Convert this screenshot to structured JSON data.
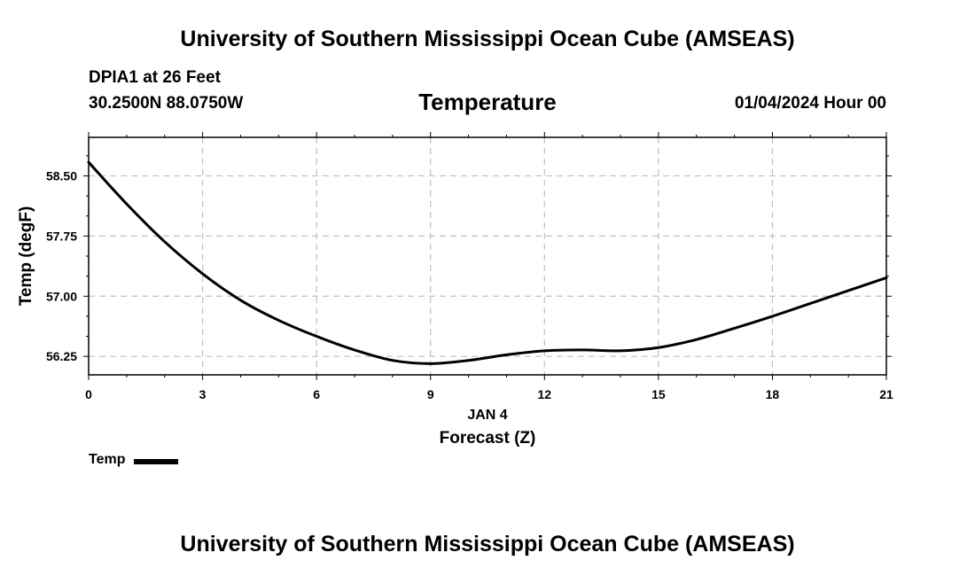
{
  "header": {
    "title": "University of Southern Mississippi Ocean Cube (AMSEAS)",
    "station": "DPIA1 at 26 Feet",
    "coordinates": "30.2500N  88.0750W",
    "variable": "Temperature",
    "datetime": "01/04/2024 Hour 00"
  },
  "footer": {
    "title": "University of Southern Mississippi Ocean Cube (AMSEAS)"
  },
  "legend": {
    "label": "Temp"
  },
  "chart_data": {
    "type": "line",
    "title": "Temperature",
    "xlabel": "Forecast (Z)",
    "xlabel_date": "JAN 4",
    "ylabel": "Temp (degF)",
    "xlim": [
      0,
      21
    ],
    "ylim": [
      56.02,
      58.98
    ],
    "xticks": [
      0,
      3,
      6,
      9,
      12,
      15,
      18,
      21
    ],
    "xtick_labels": [
      "0",
      "3",
      "6",
      "9",
      "12",
      "15",
      "18",
      "21"
    ],
    "yticks": [
      56.25,
      57.0,
      57.75,
      58.5
    ],
    "ytick_labels": [
      "56.25",
      "57.00",
      "57.75",
      "58.50"
    ],
    "grid": true,
    "legend_position": "bottom-left",
    "colors": {
      "line": "#000000",
      "grid": "#c0c0c0",
      "frame": "#000000"
    },
    "series": [
      {
        "name": "Temp",
        "x": [
          0,
          1,
          2,
          3,
          4,
          5,
          6,
          7,
          8,
          9,
          10,
          11,
          12,
          13,
          14,
          15,
          16,
          17,
          18,
          19,
          20,
          21
        ],
        "y": [
          58.67,
          58.15,
          57.68,
          57.28,
          56.95,
          56.7,
          56.5,
          56.33,
          56.2,
          56.16,
          56.2,
          56.27,
          56.32,
          56.33,
          56.32,
          56.36,
          56.46,
          56.6,
          56.75,
          56.91,
          57.07,
          57.23
        ]
      }
    ]
  }
}
